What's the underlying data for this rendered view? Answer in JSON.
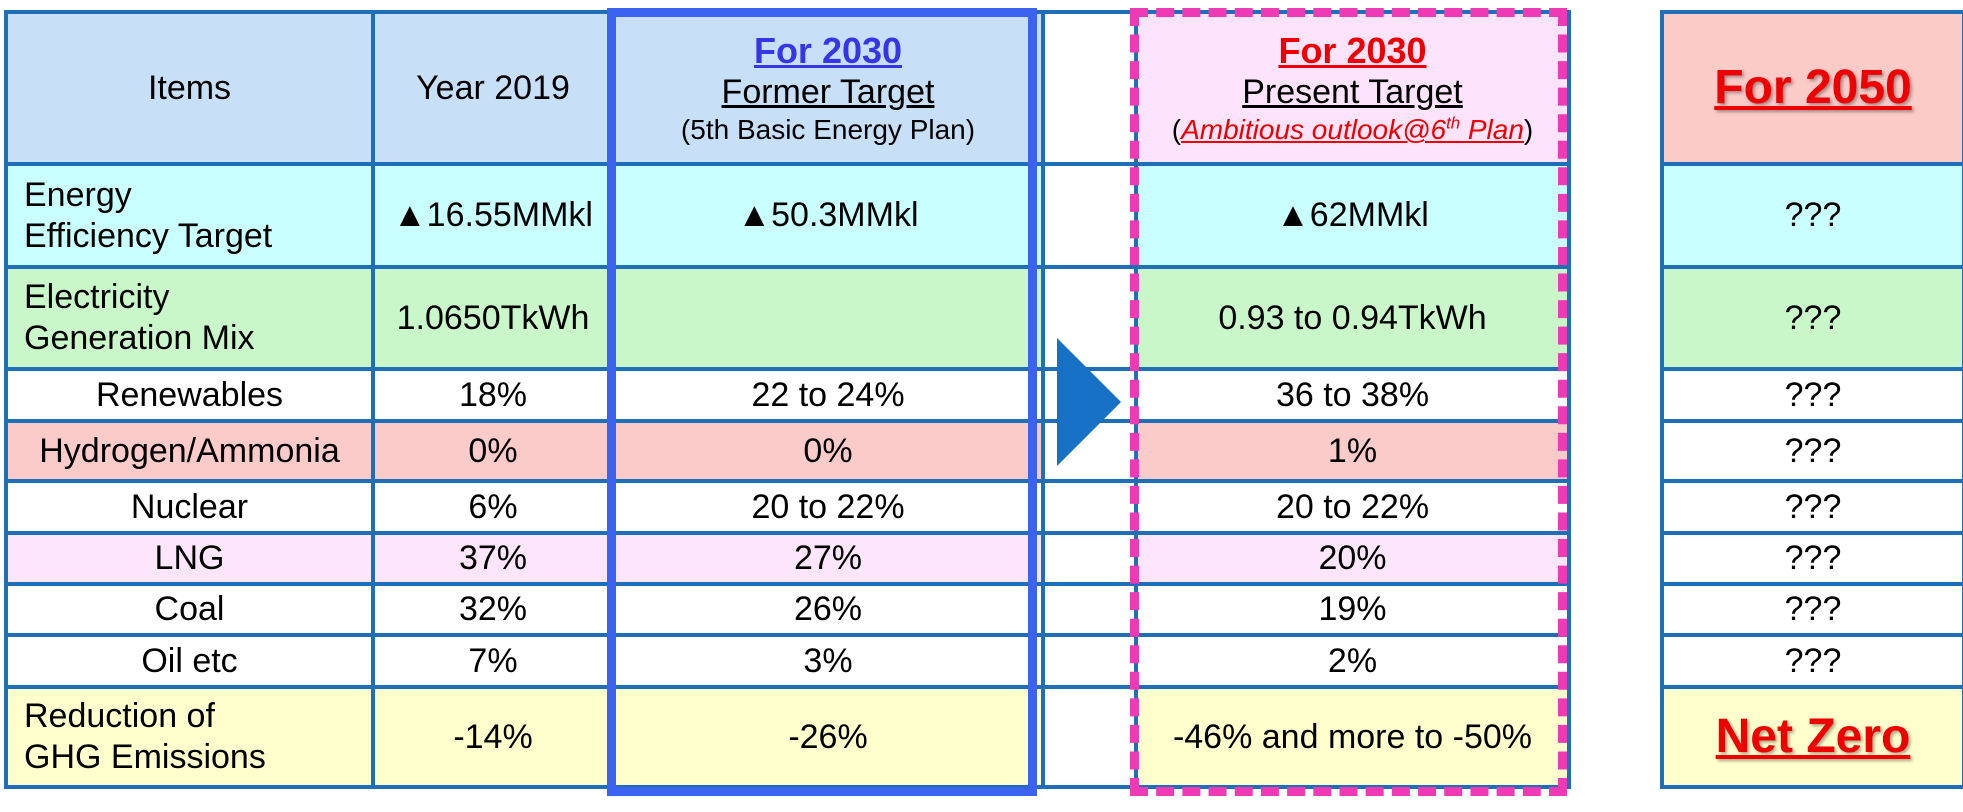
{
  "header": {
    "items": "Items",
    "year2019": "Year 2019",
    "former": {
      "title": "For 2030",
      "subtitle": "Former Target",
      "note": "(5th Basic Energy Plan)"
    },
    "present": {
      "title": "For 2030",
      "subtitle": "Present Target",
      "note_open": "(",
      "note": "Ambitious outlook@6th Plan",
      "note_close": ")"
    },
    "future": {
      "title": "For 2050"
    }
  },
  "rows": {
    "energy": {
      "label_1": "Energy",
      "label_2": "Efficiency Target",
      "y2019": "▲16.55MMkl",
      "former": "▲50.3MMkl",
      "present": "▲62MMkl",
      "future": "???"
    },
    "electricity": {
      "label_1": "Electricity",
      "label_2": "Generation Mix",
      "y2019": "1.0650TkWh",
      "former": "",
      "present": "0.93 to 0.94TkWh",
      "future": "???"
    },
    "renewables": {
      "label": "Renewables",
      "y2019": "18%",
      "former": "22 to 24%",
      "present": "36 to 38%",
      "future": "???"
    },
    "hydrogen": {
      "label": "Hydrogen/Ammonia",
      "y2019": "0%",
      "former": "0%",
      "present": "1%",
      "future": "???"
    },
    "nuclear": {
      "label": "Nuclear",
      "y2019": "6%",
      "former": "20 to 22%",
      "present": "20 to 22%",
      "future": "???"
    },
    "lng": {
      "label": "LNG",
      "y2019": "37%",
      "former": "27%",
      "present": "20%",
      "future": "???"
    },
    "coal": {
      "label": "Coal",
      "y2019": "32%",
      "former": "26%",
      "present": "19%",
      "future": "???"
    },
    "oil": {
      "label": "Oil etc",
      "y2019": "7%",
      "former": "3%",
      "present": "2%",
      "future": "???"
    },
    "ghg": {
      "label_1": "Reduction of",
      "label_2": "GHG Emissions",
      "y2019": "-14%",
      "former": "-26%",
      "present": "-46% and more to -50%",
      "future": "Net Zero"
    }
  },
  "colors": {
    "grid": "#1f6fb8",
    "former_frame": "#3b63f0",
    "present_frame": "#ee3bb5",
    "arrow": "#1670c4",
    "accent_red": "#ee0000",
    "accent_blue": "#3636e6"
  }
}
